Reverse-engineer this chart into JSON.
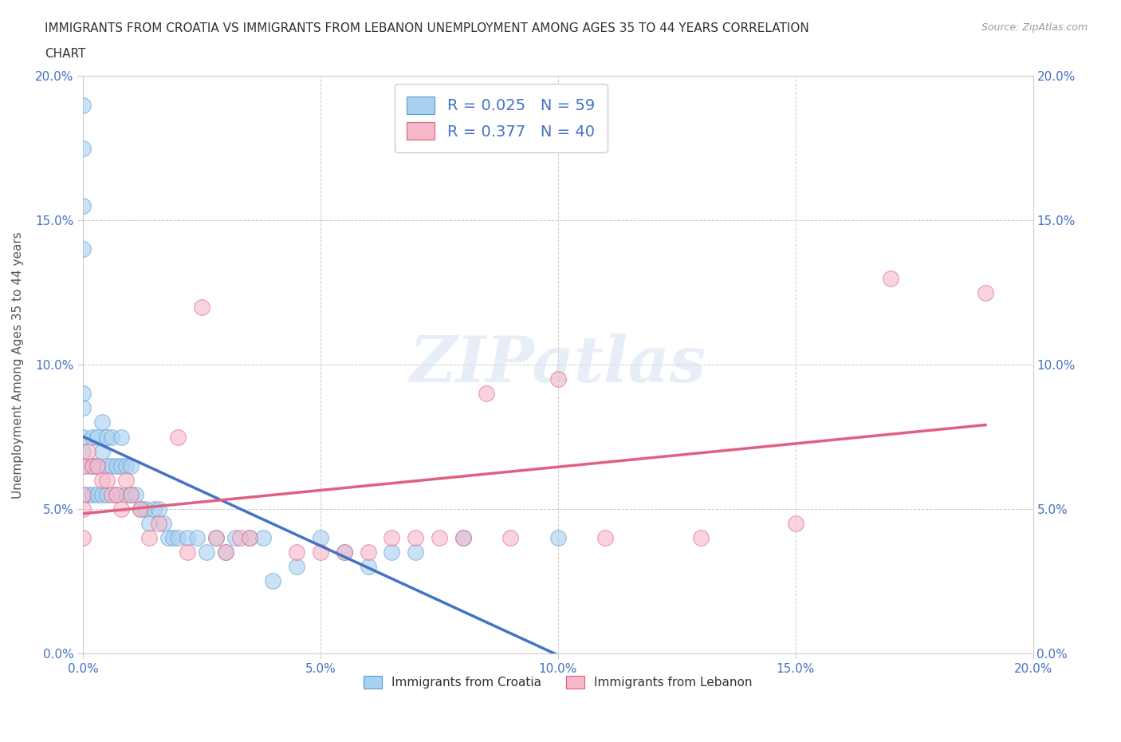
{
  "title": "IMMIGRANTS FROM CROATIA VS IMMIGRANTS FROM LEBANON UNEMPLOYMENT AMONG AGES 35 TO 44 YEARS CORRELATION\nCHART",
  "source": "Source: ZipAtlas.com",
  "ylabel": "Unemployment Among Ages 35 to 44 years",
  "watermark": "ZIPatlas",
  "xlim": [
    0.0,
    0.2
  ],
  "ylim": [
    0.0,
    0.2
  ],
  "xticks": [
    0.0,
    0.05,
    0.1,
    0.15,
    0.2
  ],
  "yticks": [
    0.0,
    0.05,
    0.1,
    0.15,
    0.2
  ],
  "xticklabels": [
    "0.0%",
    "5.0%",
    "10.0%",
    "15.0%",
    "20.0%"
  ],
  "yticklabels": [
    "0.0%",
    "5.0%",
    "10.0%",
    "15.0%",
    "20.0%"
  ],
  "croatia_color": "#a8d0f0",
  "lebanon_color": "#f5b8c8",
  "croatia_edge": "#5B9BD5",
  "lebanon_edge": "#e06080",
  "croatia_R": 0.025,
  "croatia_N": 59,
  "lebanon_R": 0.377,
  "lebanon_N": 40,
  "legend_label_1": "Immigrants from Croatia",
  "legend_label_2": "Immigrants from Lebanon",
  "legend_R1": "R = 0.025",
  "legend_N1": "N = 59",
  "legend_R2": "R = 0.377",
  "legend_N2": "N = 40",
  "croatia_x": [
    0.0,
    0.0,
    0.0,
    0.0,
    0.0,
    0.0,
    0.0,
    0.0,
    0.001,
    0.001,
    0.002,
    0.002,
    0.002,
    0.003,
    0.003,
    0.003,
    0.004,
    0.004,
    0.004,
    0.005,
    0.005,
    0.005,
    0.006,
    0.006,
    0.007,
    0.007,
    0.008,
    0.008,
    0.009,
    0.009,
    0.01,
    0.01,
    0.011,
    0.012,
    0.013,
    0.014,
    0.015,
    0.016,
    0.017,
    0.018,
    0.019,
    0.02,
    0.022,
    0.024,
    0.026,
    0.028,
    0.03,
    0.032,
    0.035,
    0.038,
    0.04,
    0.045,
    0.05,
    0.055,
    0.06,
    0.065,
    0.07,
    0.08,
    0.1
  ],
  "croatia_y": [
    0.19,
    0.175,
    0.155,
    0.14,
    0.09,
    0.085,
    0.075,
    0.07,
    0.065,
    0.055,
    0.075,
    0.065,
    0.055,
    0.075,
    0.065,
    0.055,
    0.08,
    0.07,
    0.055,
    0.075,
    0.065,
    0.055,
    0.075,
    0.065,
    0.065,
    0.055,
    0.075,
    0.065,
    0.065,
    0.055,
    0.065,
    0.055,
    0.055,
    0.05,
    0.05,
    0.045,
    0.05,
    0.05,
    0.045,
    0.04,
    0.04,
    0.04,
    0.04,
    0.04,
    0.035,
    0.04,
    0.035,
    0.04,
    0.04,
    0.04,
    0.025,
    0.03,
    0.04,
    0.035,
    0.03,
    0.035,
    0.035,
    0.04,
    0.04
  ],
  "lebanon_x": [
    0.0,
    0.0,
    0.0,
    0.0,
    0.001,
    0.002,
    0.003,
    0.004,
    0.005,
    0.006,
    0.007,
    0.008,
    0.009,
    0.01,
    0.012,
    0.014,
    0.016,
    0.02,
    0.022,
    0.025,
    0.028,
    0.03,
    0.033,
    0.035,
    0.045,
    0.05,
    0.055,
    0.06,
    0.065,
    0.07,
    0.075,
    0.08,
    0.085,
    0.09,
    0.1,
    0.11,
    0.13,
    0.15,
    0.17,
    0.19
  ],
  "lebanon_y": [
    0.065,
    0.055,
    0.05,
    0.04,
    0.07,
    0.065,
    0.065,
    0.06,
    0.06,
    0.055,
    0.055,
    0.05,
    0.06,
    0.055,
    0.05,
    0.04,
    0.045,
    0.075,
    0.035,
    0.12,
    0.04,
    0.035,
    0.04,
    0.04,
    0.035,
    0.035,
    0.035,
    0.035,
    0.04,
    0.04,
    0.04,
    0.04,
    0.09,
    0.04,
    0.095,
    0.04,
    0.04,
    0.045,
    0.13,
    0.125
  ],
  "background_color": "#ffffff",
  "grid_color": "#cccccc",
  "title_color": "#333333",
  "source_color": "#999999",
  "legend_R_color": "#4472C4",
  "axis_tick_color": "#4472C4",
  "axis_color": "#555555",
  "croatia_line_color": "#4472C4",
  "lebanon_line_color": "#e06080"
}
